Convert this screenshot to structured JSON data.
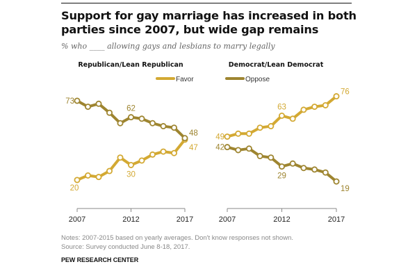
{
  "title": "Support for gay marriage has increased in both parties since 2007, but wide gap remains",
  "subtitle": "% who ____ allowing gays and lesbians to marry legally",
  "notes": "Notes: 2007-2015 based on yearly averages. Don't know responses not shown.",
  "source": "Source: Survey conducted June 8-18, 2017.",
  "brand": "PEW RESEARCH CENTER",
  "colors": {
    "favor": "#d3a933",
    "oppose": "#9e8530"
  },
  "chart_data": [
    {
      "type": "line",
      "title": "Republican/Lean Republican",
      "x": [
        2007,
        2008,
        2009,
        2010,
        2011,
        2012,
        2013,
        2014,
        2015,
        2016,
        2017
      ],
      "xticks": [
        "2007",
        "2012",
        "2017"
      ],
      "ylim": [
        0,
        100
      ],
      "legend": [
        "Favor",
        "Oppose"
      ],
      "series": [
        {
          "name": "Favor",
          "values": [
            20,
            23,
            22,
            26,
            35,
            30,
            33,
            37,
            39,
            38,
            47
          ],
          "labels": [
            {
              "index": 0,
              "text": "20"
            },
            {
              "index": 5,
              "text": "30"
            },
            {
              "index": 10,
              "text": "47"
            }
          ]
        },
        {
          "name": "Oppose",
          "values": [
            73,
            69,
            71,
            65,
            58,
            62,
            61,
            58,
            56,
            55,
            48
          ],
          "labels": [
            {
              "index": 0,
              "text": "73"
            },
            {
              "index": 5,
              "text": "62"
            },
            {
              "index": 10,
              "text": "48"
            }
          ]
        }
      ]
    },
    {
      "type": "line",
      "title": "Democrat/Lean Democrat",
      "x": [
        2007,
        2008,
        2009,
        2010,
        2011,
        2012,
        2013,
        2014,
        2015,
        2016,
        2017
      ],
      "xticks": [
        "2007",
        "2012",
        "2017"
      ],
      "ylim": [
        0,
        100
      ],
      "series": [
        {
          "name": "Favor",
          "values": [
            49,
            51,
            51,
            55,
            56,
            63,
            61,
            67,
            69,
            70,
            76
          ],
          "labels": [
            {
              "index": 0,
              "text": "49"
            },
            {
              "index": 5,
              "text": "63"
            },
            {
              "index": 10,
              "text": "76"
            }
          ]
        },
        {
          "name": "Oppose",
          "values": [
            42,
            40,
            41,
            36,
            35,
            29,
            31,
            28,
            27,
            25,
            19
          ],
          "labels": [
            {
              "index": 0,
              "text": "42"
            },
            {
              "index": 5,
              "text": "29"
            },
            {
              "index": 10,
              "text": "19"
            }
          ]
        }
      ]
    }
  ]
}
